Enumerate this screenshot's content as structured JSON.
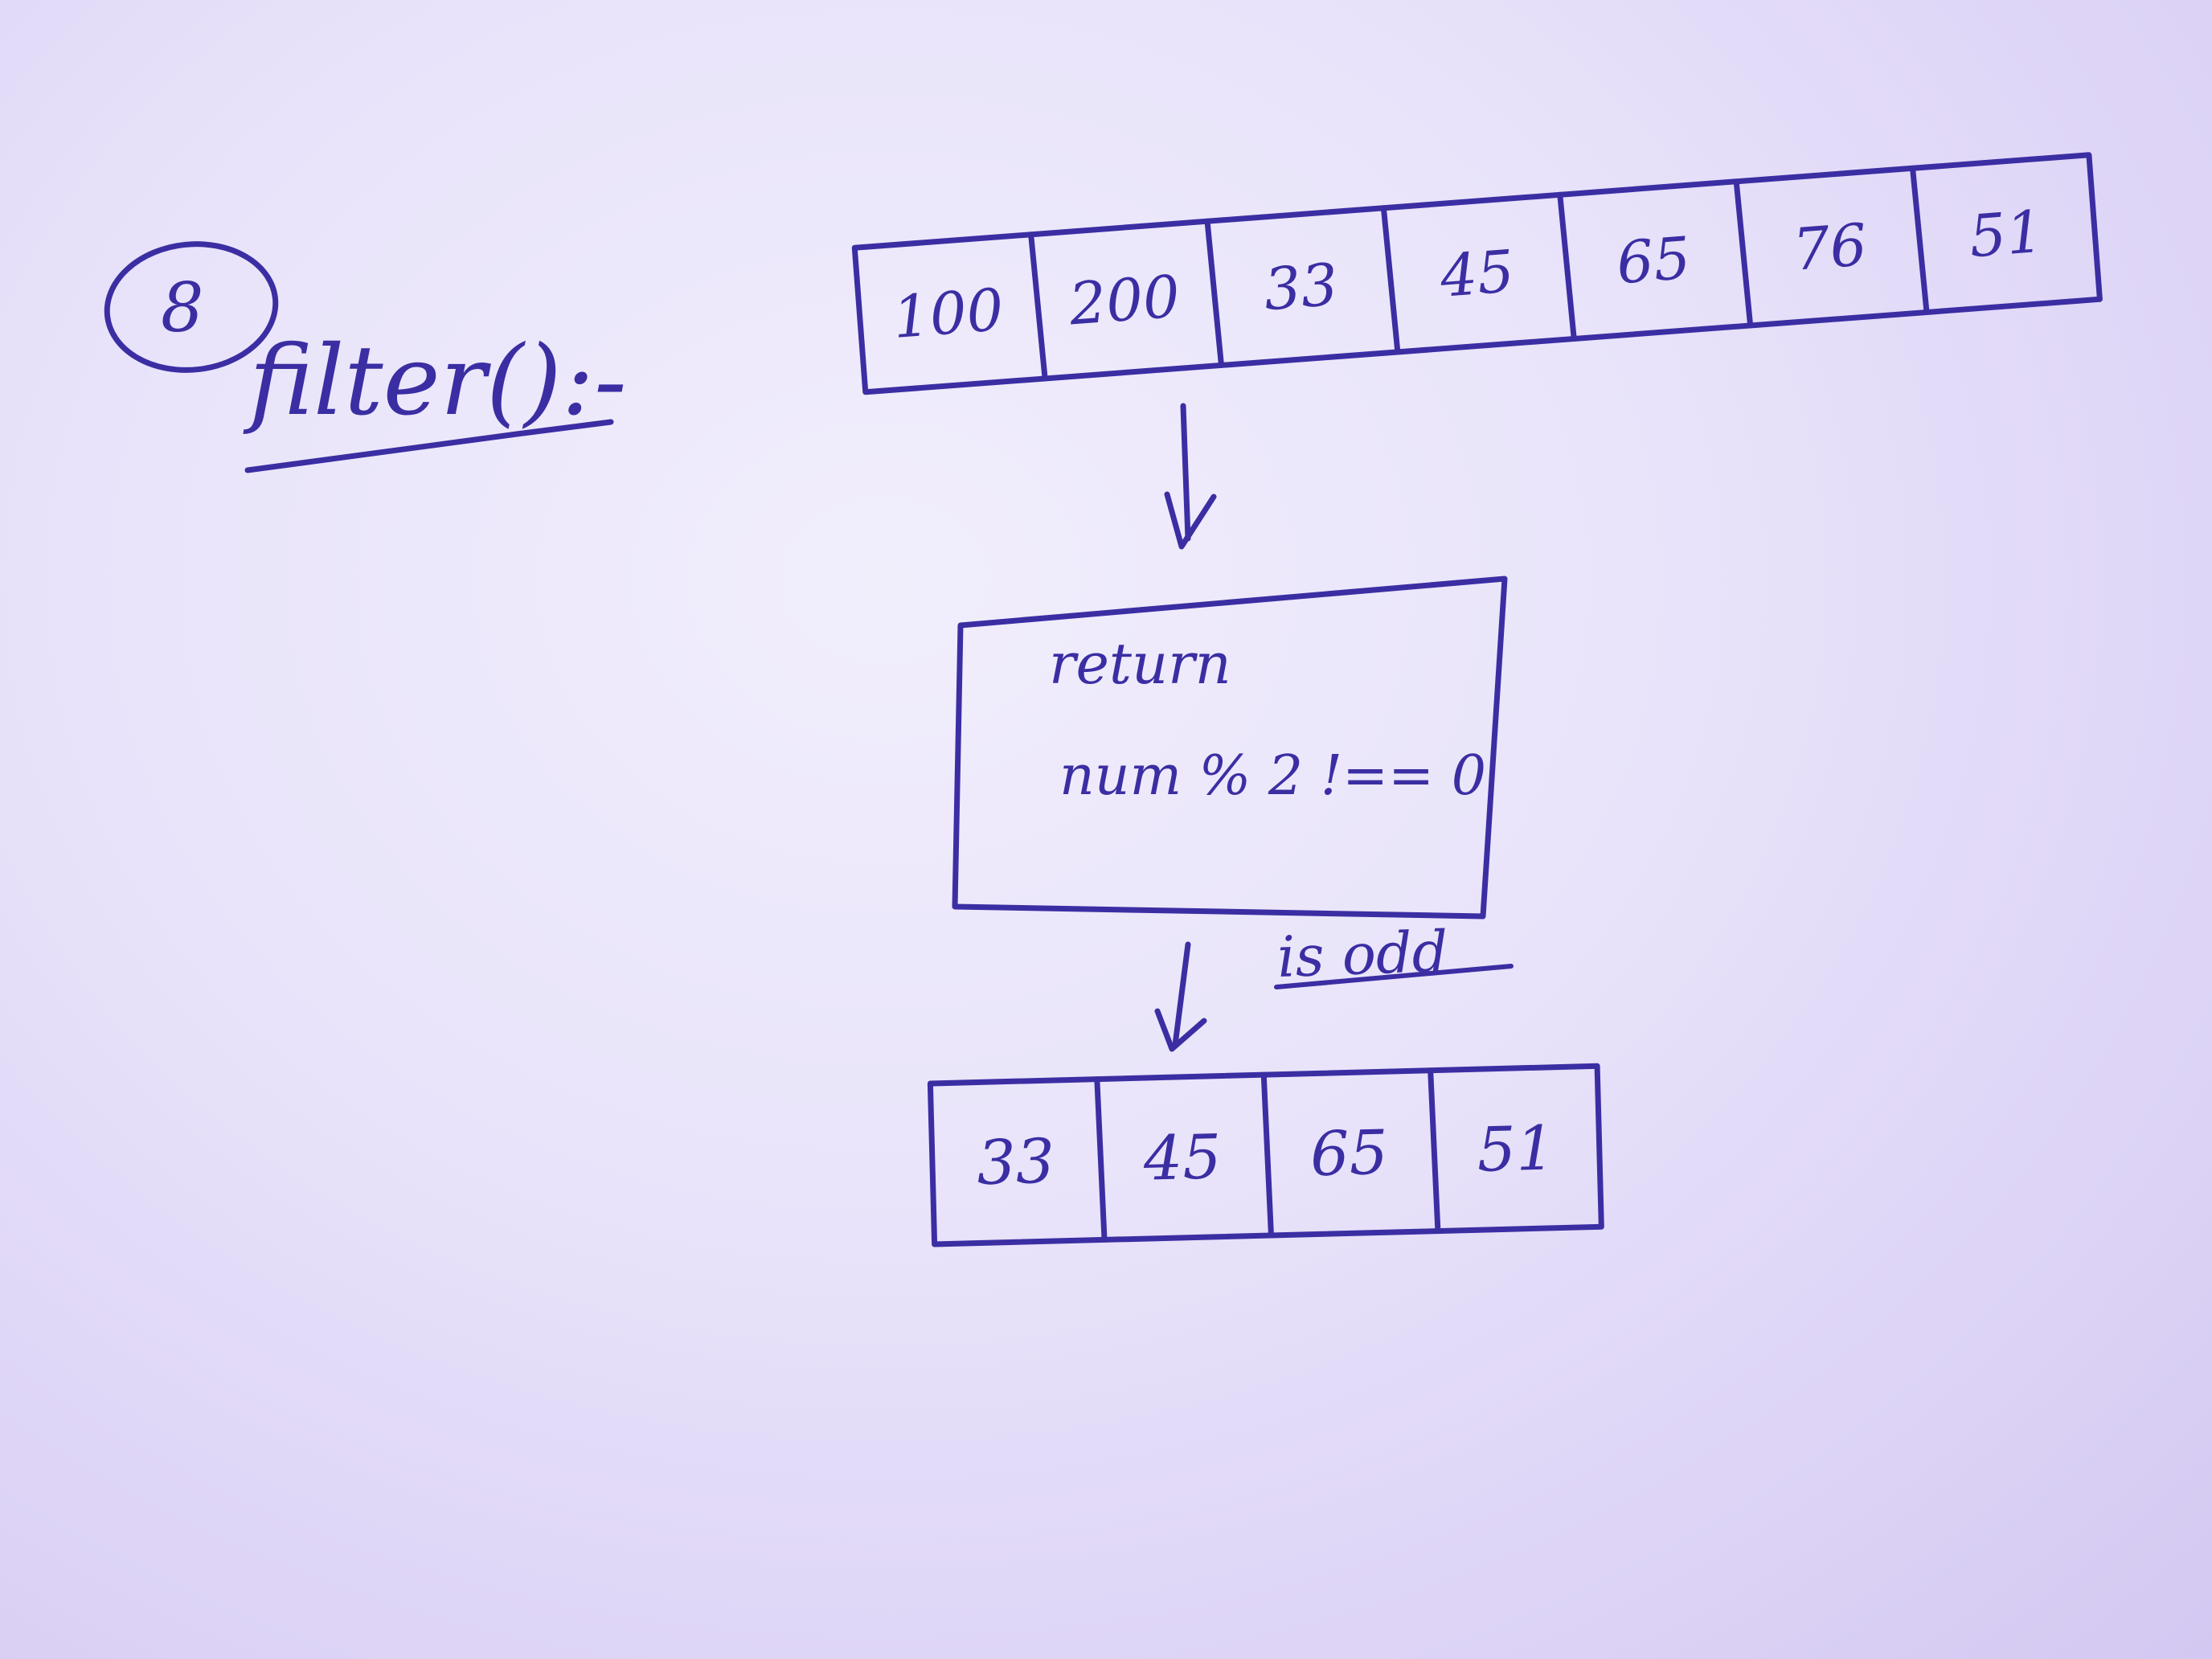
{
  "note": {
    "number": "8",
    "heading": "filter():-",
    "input_array": [
      "100",
      "200",
      "33",
      "45",
      "65",
      "76",
      "51"
    ],
    "condition": {
      "line1": "return",
      "line2": "num % 2 !== 0"
    },
    "side_label": "is odd",
    "output_array": [
      "33",
      "45",
      "65",
      "51"
    ]
  },
  "colors": {
    "ink": "#3b2ea3",
    "paper": "#e9e4fa"
  },
  "icons": [
    "circle-mark",
    "down-arrow-icon"
  ]
}
